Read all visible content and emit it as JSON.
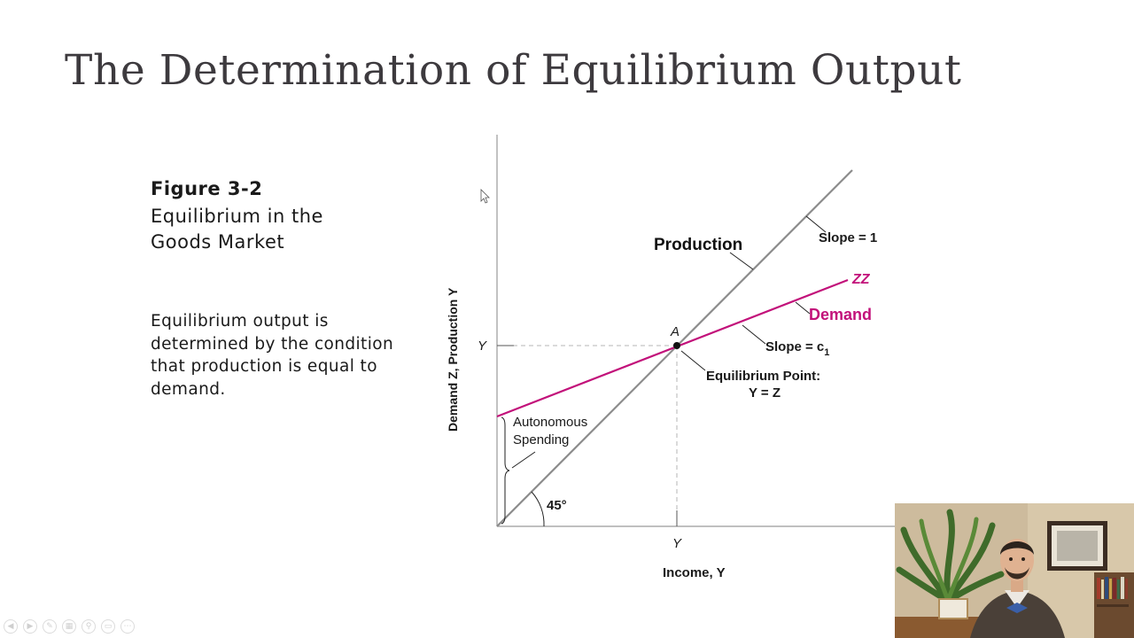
{
  "slide": {
    "title": "The Determination of Equilibrium Output",
    "figure_label": "Figure 3-2",
    "figure_caption": "Equilibrium in the Goods Market",
    "description": "Equilibrium output is determined by the condition that production is equal to demand."
  },
  "diagram": {
    "y_axis_label": "Demand Z, Production Y",
    "x_axis_label": "Income, Y",
    "y_tick": "Y",
    "x_tick": "Y",
    "production_label": "Production",
    "production_slope": "Slope = 1",
    "zz_label": "ZZ",
    "demand_label": "Demand",
    "demand_slope": "Slope = c",
    "demand_slope_sub": "1",
    "point_label": "A",
    "equilibrium_line1": "Equilibrium Point:",
    "equilibrium_line2": "Y = Z",
    "autonomous_line1": "Autonomous",
    "autonomous_line2": "Spending",
    "angle_label": "45°",
    "colors": {
      "production_line": "#8c8c8c",
      "demand_line": "#c2117a",
      "axis": "#9a9a9a",
      "guide": "#b5b5b5"
    }
  },
  "toolbar": {
    "icons": [
      "previous-icon",
      "next-icon",
      "pen-icon",
      "slides-icon",
      "zoom-icon",
      "subtitles-icon",
      "more-icon"
    ]
  }
}
